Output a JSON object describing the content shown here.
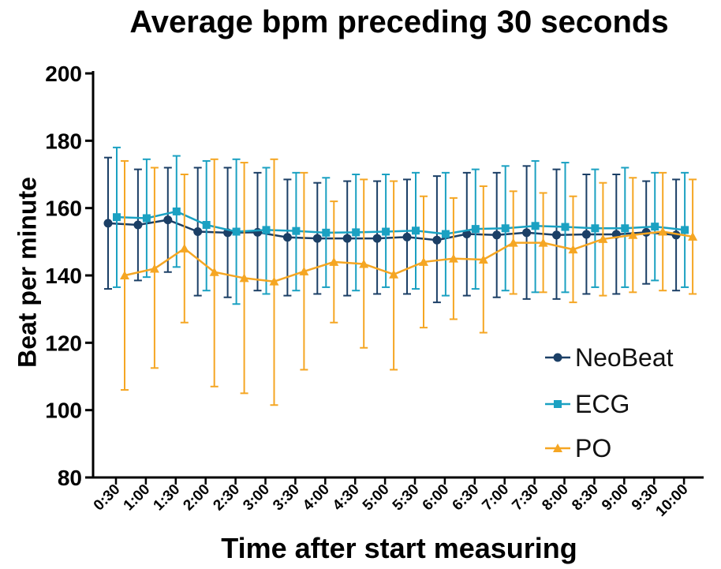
{
  "chart_data": {
    "type": "line",
    "title": "Average bpm preceding 30 seconds",
    "xlabel": "Time after start measuring",
    "ylabel": "Beat per minute",
    "ylim": [
      80,
      200
    ],
    "yticks": [
      "80",
      "100",
      "120",
      "140",
      "160",
      "180",
      "200"
    ],
    "categories": [
      "0:30",
      "1:00",
      "1:30",
      "2:00",
      "2:30",
      "3:00",
      "3:30",
      "4:00",
      "4:30",
      "5:00",
      "5:30",
      "6:00",
      "6:30",
      "7:00",
      "7:30",
      "8:00",
      "8:30",
      "9:00",
      "9:30",
      "10:00"
    ],
    "grid": false,
    "legend_position": "bottom-right",
    "error_bars": true,
    "series": [
      {
        "name": "NeoBeat",
        "color": "#1b3f66",
        "marker": "circle",
        "values": [
          155.5,
          155,
          156.5,
          153,
          152.7,
          152.8,
          151.3,
          151,
          151,
          151,
          151.4,
          150.5,
          152.3,
          152,
          152.7,
          152,
          152.2,
          152.2,
          152.8,
          152
        ],
        "upper": [
          175,
          171.5,
          172,
          172,
          172,
          170.5,
          168.5,
          167.5,
          168,
          168,
          168.5,
          169.5,
          170.5,
          170.5,
          172.5,
          171.5,
          170,
          170,
          168,
          168.5
        ],
        "lower": [
          136,
          138.5,
          141,
          134,
          133.5,
          135.5,
          134,
          134.5,
          134,
          134.5,
          134.5,
          132,
          134,
          133.5,
          133,
          133,
          134.5,
          134.5,
          137.5,
          135.5
        ]
      },
      {
        "name": "ECG",
        "color": "#1ba1c2",
        "marker": "square",
        "values": [
          157.3,
          157,
          159,
          155,
          153,
          153.5,
          153.2,
          152.7,
          152.8,
          153,
          153.3,
          152.3,
          153.8,
          154,
          154.7,
          154.4,
          154,
          154,
          154.5,
          153.5
        ],
        "upper": [
          178,
          174.5,
          175.5,
          174,
          174.5,
          172,
          170.5,
          169,
          170,
          170,
          170.5,
          170.5,
          171.5,
          172.5,
          174,
          173.5,
          171.5,
          172,
          170.5,
          170.5
        ],
        "lower": [
          136.5,
          139.5,
          142.5,
          135.5,
          131.5,
          134.5,
          135.5,
          136.5,
          135.5,
          136.5,
          136,
          134,
          136,
          135.5,
          135,
          135,
          136.5,
          136.5,
          138.5,
          136.5
        ]
      },
      {
        "name": "PO",
        "color": "#f5a623",
        "marker": "triangle",
        "values": [
          140,
          142,
          148,
          141,
          139.2,
          138.2,
          141.2,
          144,
          143.4,
          140.3,
          144,
          145,
          144.7,
          149.7,
          149.7,
          147.7,
          150.8,
          152,
          153,
          151.5
        ],
        "upper": [
          174,
          172,
          170,
          174.5,
          173.5,
          174.5,
          170.5,
          162,
          168.5,
          168,
          163.5,
          163,
          166.5,
          165,
          164.5,
          163.5,
          167.5,
          169,
          170.5,
          168.5
        ],
        "lower": [
          106,
          112.5,
          126,
          107,
          105,
          101.5,
          112,
          126,
          118.5,
          112,
          124.5,
          127,
          123,
          134.5,
          135,
          132,
          134,
          135,
          135.5,
          134.5
        ]
      }
    ]
  }
}
